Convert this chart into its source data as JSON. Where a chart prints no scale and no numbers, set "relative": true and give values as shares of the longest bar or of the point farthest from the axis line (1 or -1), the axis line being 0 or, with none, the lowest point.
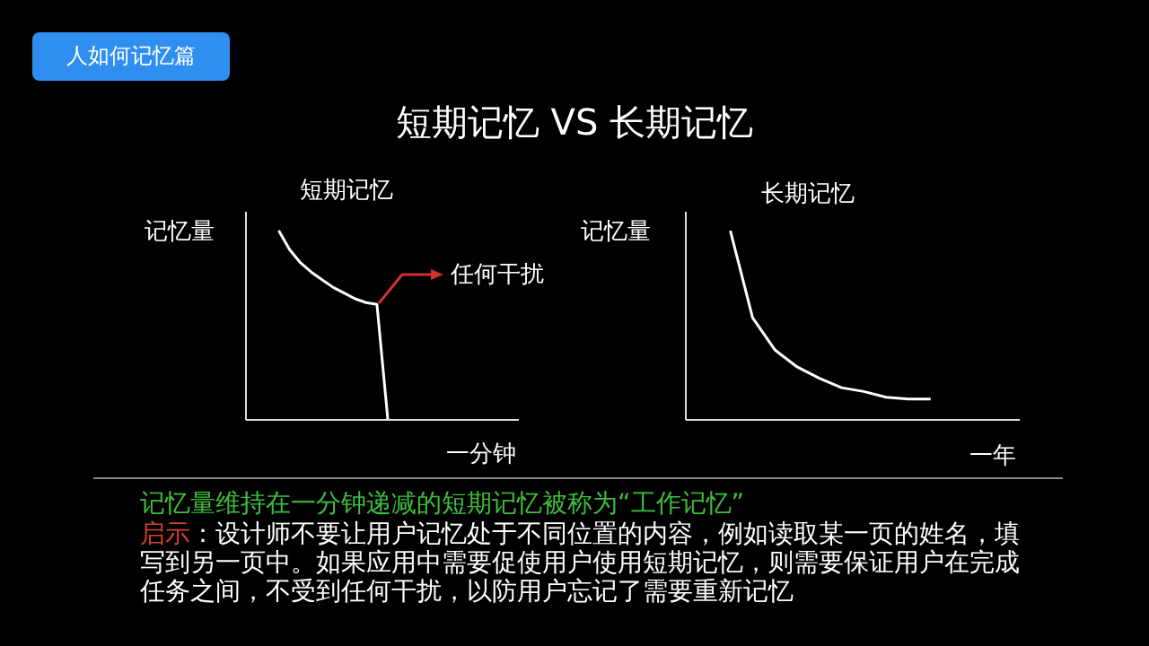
{
  "chart_data": [
    {
      "type": "line",
      "title": "短期记忆",
      "xlabel": "一分钟",
      "ylabel": "记忆量",
      "relative": true,
      "marker": "none",
      "line_style": "solid",
      "legend": false,
      "grid": false,
      "annotations": [
        "人如何记忆篇",
        "短期记忆 VS 长期记忆",
        "任何干扰",
        "记忆量维持在一分钟递减的短期记忆被称为“工作记忆”",
        "启示：设计师不要让用户记忆处于不同位置的内容，例如读取某一页的姓名，填写到另一页中。如果应用中需要促使用户使用短期记忆，则需要保证用户在完成任务之间，不受到任何干扰，以防用户忘记了需要重新记忆"
      ],
      "categories": [
        null,
        null,
        null,
        null,
        null,
        null,
        null,
        null,
        null,
        null,
        null,
        null,
        null,
        null,
        null,
        null,
        null,
        null,
        null,
        null,
        null,
        null,
        null,
        null,
        null,
        null
      ],
      "series": [
        {
          "color": "#ffffff",
          "values": [
            null,
            null,
            null,
            1,
            0.9,
            0.83,
            0.78,
            0.74,
            0.7,
            0.67,
            0.64,
            0.62,
            0.61,
            0,
            null,
            null,
            null,
            null,
            null,
            null,
            null,
            null,
            null,
            null,
            null,
            null
          ]
        }
      ]
    },
    {
      "type": "line",
      "title": "长期记忆",
      "xlabel": "一年",
      "ylabel": "记忆量",
      "relative": true,
      "marker": "none",
      "line_style": "solid",
      "legend": false,
      "grid": false,
      "categories": [
        null,
        null,
        null,
        null,
        null,
        null,
        null,
        null,
        null,
        null,
        null,
        null,
        null,
        null,
        null,
        null
      ],
      "series": [
        {
          "color": "#ffffff",
          "values": [
            null,
            null,
            1,
            0.54,
            0.37,
            0.28,
            0.22,
            0.17,
            0.15,
            0.12,
            0.11,
            0.11,
            null,
            null,
            null,
            null
          ]
        }
      ]
    }
  ]
}
